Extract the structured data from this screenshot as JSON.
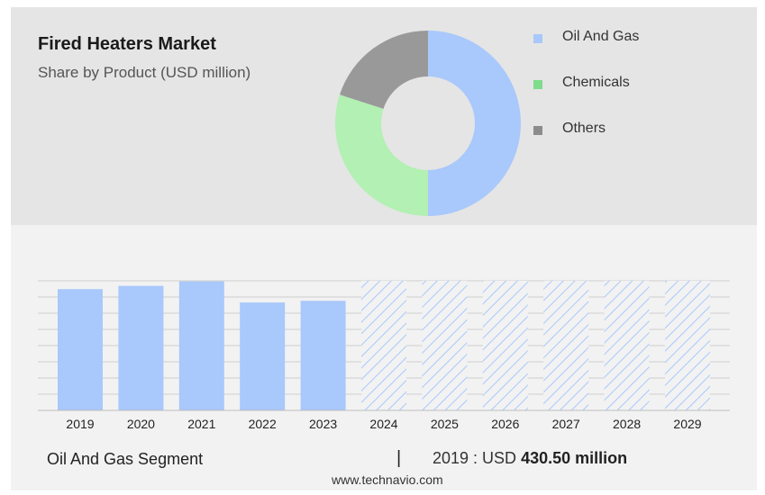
{
  "header": {
    "title": "Fired Heaters Market",
    "subtitle": "Share by Product (USD million)"
  },
  "colors": {
    "oil_and_gas": "#a9c8fb",
    "chemicals": "#b3f0b3",
    "others": "#999999",
    "forecast_hatch": "#a9c8fb"
  },
  "chart_data": [
    {
      "type": "pie",
      "variant": "donut",
      "title": "Share by Product (USD million)",
      "legend_position": "right",
      "slices": [
        {
          "label": "Oil And Gas",
          "share": 0.5
        },
        {
          "label": "Chemicals",
          "share": 0.3
        },
        {
          "label": "Others",
          "share": 0.2
        }
      ]
    },
    {
      "type": "bar",
      "categories": [
        "2019",
        "2020",
        "2021",
        "2022",
        "2023",
        "2024",
        "2025",
        "2026",
        "2027",
        "2028",
        "2029"
      ],
      "values": [
        430.5,
        442,
        458,
        383,
        389,
        null,
        null,
        null,
        null,
        null,
        null
      ],
      "forecast_categories": [
        "2024",
        "2025",
        "2026",
        "2027",
        "2028",
        "2029"
      ],
      "ylim": [
        0,
        460
      ],
      "grid": true,
      "xlabel": "",
      "ylabel": ""
    }
  ],
  "footer": {
    "segment_label": "Oil And Gas Segment",
    "separator": "|",
    "value_prefix": "2019 : USD",
    "value_amount": "430.50 million",
    "source": "www.technavio.com"
  }
}
